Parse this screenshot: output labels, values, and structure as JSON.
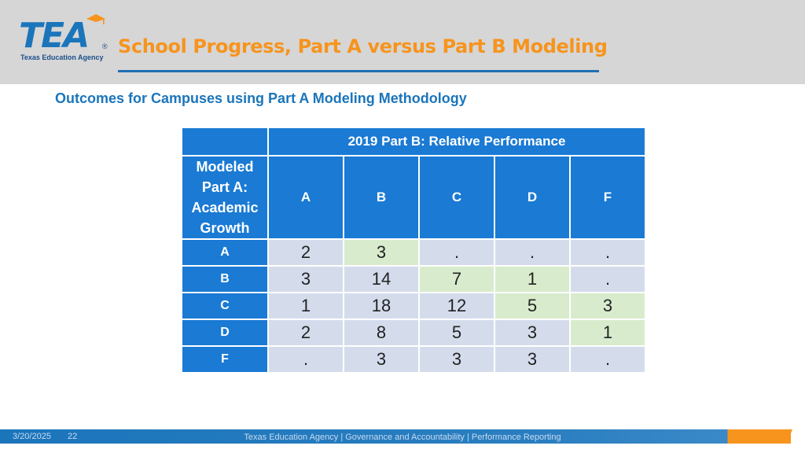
{
  "header": {
    "logo_text": "TEA",
    "logo_subtext": "Texas Education Agency",
    "title": "School Progress, Part A versus Part B Modeling"
  },
  "subtitle": "Outcomes for Campuses using Part A Modeling Methodology",
  "table": {
    "column_group_header": "2019 Part B: Relative Performance",
    "row_group_header": "Modeled Part A: Academic Growth",
    "columns": [
      "A",
      "B",
      "C",
      "D",
      "F"
    ],
    "rows": [
      {
        "label": "A",
        "values": [
          "2",
          "3",
          ".",
          ".",
          "."
        ]
      },
      {
        "label": "B",
        "values": [
          "3",
          "14",
          "7",
          "1",
          "."
        ]
      },
      {
        "label": "C",
        "values": [
          "1",
          "18",
          "12",
          "5",
          "3"
        ]
      },
      {
        "label": "D",
        "values": [
          "2",
          "8",
          "5",
          "3",
          "1"
        ]
      },
      {
        "label": "F",
        "values": [
          ".",
          "3",
          "3",
          "3",
          "."
        ]
      }
    ],
    "highlight_color": "#d8eccd",
    "cell_color": "#d4dcec",
    "header_color": "#1a7ad4"
  },
  "footer": {
    "date": "3/20/2025",
    "page": "22",
    "center_text": "Texas Education Agency | Governance and Accountability | Performance Reporting"
  }
}
